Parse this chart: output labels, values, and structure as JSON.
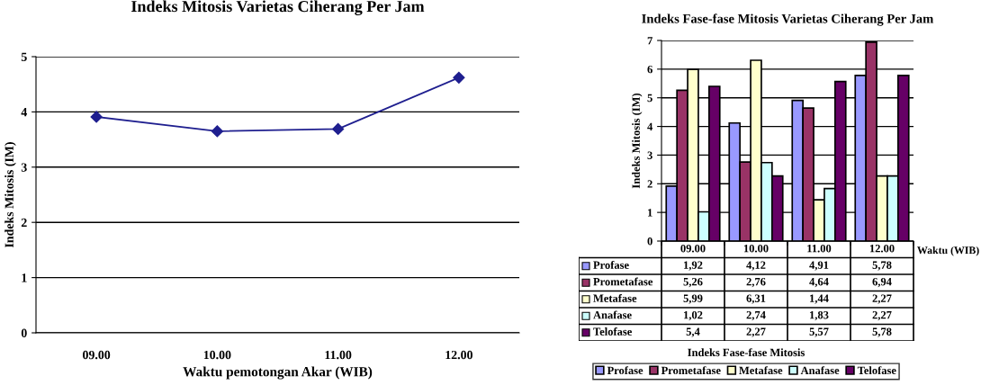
{
  "chart_data": [
    {
      "type": "line",
      "title": "Indeks Mitosis Varietas Ciherang Per Jam",
      "xlabel": "Waktu pemotongan Akar (WIB)",
      "ylabel": "Indeks Mitosis (IM)",
      "categories": [
        "09.00",
        "10.00",
        "11.00",
        "12.00"
      ],
      "values": [
        3.91,
        3.65,
        3.69,
        4.62
      ],
      "color": "#1f1f8f",
      "ylim": [
        0,
        5
      ],
      "yticks": [
        0,
        1,
        2,
        3,
        4,
        5
      ],
      "grid": "y",
      "marker": "diamond",
      "line_style": "solid"
    },
    {
      "type": "bar",
      "title": "Indeks Fase-fase Mitosis Varietas Ciherang Per Jam",
      "xlabel": "Waktu (WIB)",
      "ylabel": "Indeks Mitosis (IM)",
      "annotations": [
        "Indeks Fase-fase Mitosis"
      ],
      "categories": [
        "09.00",
        "10.00",
        "11.00",
        "12.00"
      ],
      "ylim": [
        0,
        7
      ],
      "yticks": [
        0,
        1,
        2,
        3,
        4,
        5,
        6,
        7
      ],
      "grid": "y",
      "legend": "bottom",
      "series": [
        {
          "name": "Profase",
          "color": "#9999ff",
          "values": [
            1.92,
            4.12,
            4.91,
            5.78
          ],
          "value_labels": [
            "1,92",
            "4,12",
            "4,91",
            "5,78"
          ]
        },
        {
          "name": "Prometafase",
          "color": "#993366",
          "values": [
            5.26,
            2.76,
            4.64,
            6.94
          ],
          "value_labels": [
            "5,26",
            "2,76",
            "4,64",
            "6,94"
          ]
        },
        {
          "name": "Metafase",
          "color": "#ffffcc",
          "values": [
            5.99,
            6.31,
            1.44,
            2.27
          ],
          "value_labels": [
            "5,99",
            "6,31",
            "1,44",
            "2,27"
          ]
        },
        {
          "name": "Anafase",
          "color": "#ccffff",
          "values": [
            1.02,
            2.74,
            1.83,
            2.27
          ],
          "value_labels": [
            "1,02",
            "2,74",
            "1,83",
            "2,27"
          ]
        },
        {
          "name": "Telofase",
          "color": "#660066",
          "values": [
            5.4,
            2.27,
            5.57,
            5.78
          ],
          "value_labels": [
            "5,4",
            "2,27",
            "5,57",
            "5,78"
          ]
        }
      ]
    }
  ]
}
